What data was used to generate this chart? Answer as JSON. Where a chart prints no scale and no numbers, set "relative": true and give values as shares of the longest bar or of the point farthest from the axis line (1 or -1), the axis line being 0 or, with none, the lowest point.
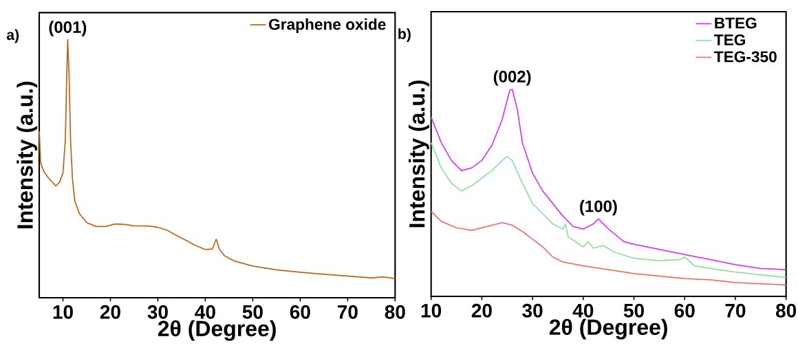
{
  "chart_data": [
    {
      "type": "line",
      "relative": true,
      "xlabel": "2θ (Degree)",
      "ylabel": "Intensity (a.u.)",
      "xlim": [
        5,
        80
      ],
      "xticks": [
        10,
        20,
        30,
        40,
        50,
        60,
        70,
        80
      ],
      "legend": "top right",
      "grid": false,
      "marker": "none",
      "line_style": "solid",
      "annotations": [
        "a)",
        {
          "text": "(001)",
          "x": 11,
          "y": 1.0
        }
      ],
      "series": [
        {
          "name": "Graphene oxide",
          "color": "#c06418",
          "x": [
            5.0,
            5.3,
            6,
            7,
            8,
            8.5,
            9.3,
            10,
            10.5,
            10.8,
            11.0,
            11.3,
            11.6,
            12,
            12.5,
            13.5,
            15,
            17,
            19,
            21,
            23,
            25,
            28,
            30,
            32,
            34,
            36,
            38,
            40,
            41.5,
            42.3,
            43,
            44,
            46,
            50,
            55,
            60,
            65,
            70,
            75,
            77.5,
            80
          ],
          "values": [
            0.645,
            0.522,
            0.488,
            0.463,
            0.443,
            0.433,
            0.448,
            0.483,
            0.611,
            0.857,
            1.0,
            0.857,
            0.611,
            0.463,
            0.374,
            0.325,
            0.291,
            0.276,
            0.276,
            0.286,
            0.284,
            0.279,
            0.278,
            0.273,
            0.261,
            0.241,
            0.222,
            0.202,
            0.187,
            0.189,
            0.227,
            0.187,
            0.163,
            0.143,
            0.123,
            0.108,
            0.099,
            0.091,
            0.084,
            0.077,
            0.081,
            0.074
          ]
        }
      ]
    },
    {
      "type": "line",
      "relative": true,
      "xlabel": "2θ (Degree)",
      "ylabel": "Intensity (a.u.)",
      "xlim": [
        10,
        80
      ],
      "xticks": [
        10,
        20,
        30,
        40,
        50,
        60,
        70,
        80
      ],
      "legend": "top right",
      "grid": false,
      "marker": "none",
      "line_style": "solid",
      "annotations": [
        "b)",
        {
          "text": "(002)",
          "x": 26,
          "y": 1.0
        },
        {
          "text": "(100)",
          "x": 43,
          "y": 0.374
        }
      ],
      "series": [
        {
          "name": "BTEG",
          "color": "#d43cf2",
          "x": [
            10,
            12,
            14,
            16,
            18,
            20,
            22,
            24,
            25.5,
            26,
            27,
            28,
            30,
            32,
            34,
            36,
            38,
            40,
            42,
            43,
            45,
            48,
            50,
            55,
            60,
            65,
            70,
            75,
            80
          ],
          "values": [
            0.865,
            0.742,
            0.656,
            0.607,
            0.62,
            0.656,
            0.73,
            0.853,
            0.994,
            1.0,
            0.902,
            0.742,
            0.595,
            0.509,
            0.448,
            0.387,
            0.337,
            0.325,
            0.35,
            0.374,
            0.325,
            0.264,
            0.252,
            0.227,
            0.202,
            0.178,
            0.153,
            0.135,
            0.129
          ]
        },
        {
          "name": "TEG",
          "color": "#90e0a0",
          "x": [
            10,
            12,
            14,
            16,
            18,
            20,
            22,
            24,
            25,
            26,
            28,
            30,
            32,
            34,
            36,
            36.5,
            37,
            40,
            41,
            42,
            44,
            46,
            50,
            55,
            59,
            60,
            62,
            65,
            70,
            75,
            80
          ],
          "values": [
            0.742,
            0.62,
            0.546,
            0.509,
            0.534,
            0.571,
            0.607,
            0.656,
            0.675,
            0.656,
            0.546,
            0.448,
            0.399,
            0.35,
            0.325,
            0.35,
            0.288,
            0.239,
            0.264,
            0.233,
            0.245,
            0.215,
            0.184,
            0.172,
            0.178,
            0.19,
            0.147,
            0.135,
            0.117,
            0.104,
            0.092
          ]
        },
        {
          "name": "TEG-350",
          "color": "#f0706a",
          "x": [
            10,
            12,
            15,
            18,
            21,
            24,
            26,
            28,
            30,
            32,
            34,
            36,
            40,
            45,
            50,
            55,
            60,
            65,
            70,
            75,
            80
          ],
          "values": [
            0.411,
            0.362,
            0.331,
            0.319,
            0.337,
            0.356,
            0.344,
            0.313,
            0.276,
            0.239,
            0.19,
            0.166,
            0.147,
            0.129,
            0.11,
            0.098,
            0.086,
            0.08,
            0.067,
            0.061,
            0.055
          ]
        }
      ]
    }
  ]
}
